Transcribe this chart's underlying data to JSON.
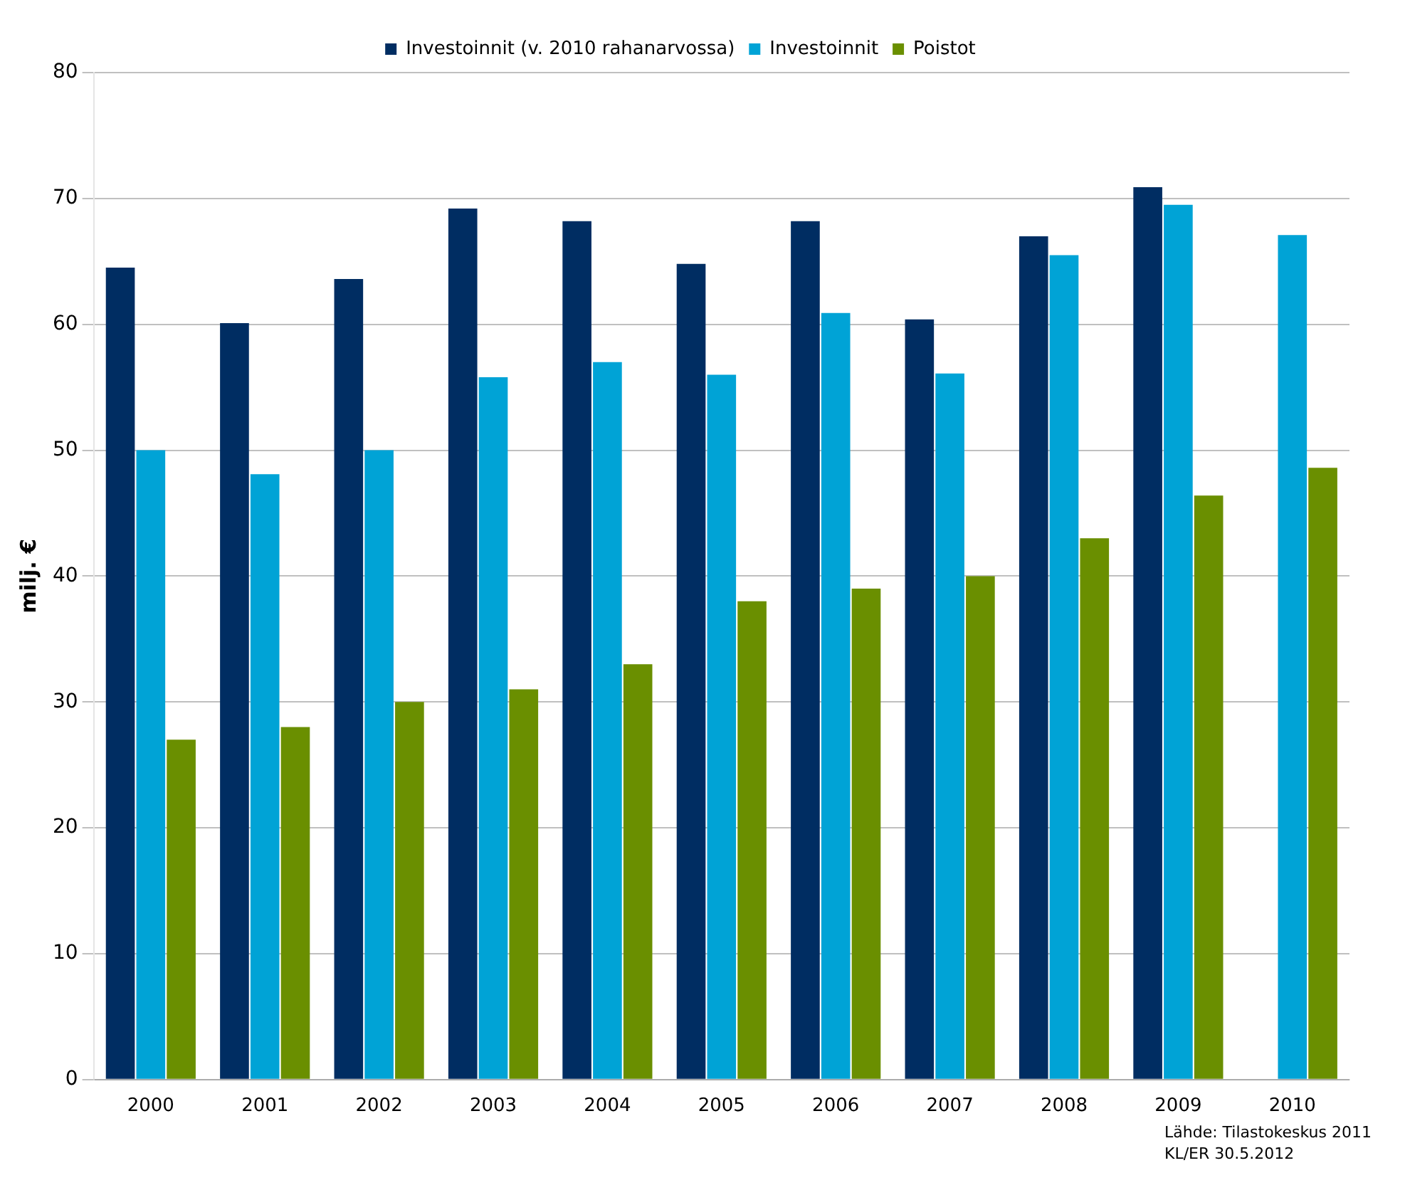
{
  "chart_data": {
    "type": "bar",
    "ylabel": "milj. €",
    "categories": [
      "2000",
      "2001",
      "2002",
      "2003",
      "2004",
      "2005",
      "2006",
      "2007",
      "2008",
      "2009",
      "2010"
    ],
    "series": [
      {
        "name": "Investoinnit (v. 2010 rahanarvossa)",
        "color": "#002d62",
        "values": [
          64.5,
          60.1,
          63.6,
          69.2,
          68.2,
          64.8,
          68.2,
          60.4,
          67.0,
          70.9,
          null
        ]
      },
      {
        "name": "Investoinnit",
        "color": "#00a3d6",
        "values": [
          50,
          48.1,
          50,
          55.8,
          57,
          56,
          60.9,
          56.1,
          65.5,
          69.5,
          67.1
        ]
      },
      {
        "name": "Poistot",
        "color": "#6a8f00",
        "values": [
          27,
          28,
          30,
          31,
          33,
          38,
          39,
          40,
          43,
          46.4,
          48.6
        ]
      }
    ],
    "ylim": [
      0,
      80
    ],
    "yticks": [
      0,
      10,
      20,
      30,
      40,
      50,
      60,
      70,
      80
    ],
    "grid": "y",
    "legend": "top",
    "annotations": [
      "Lähde: Tilastokeskus 2011",
      "KL/ER 30.5.2012"
    ]
  }
}
